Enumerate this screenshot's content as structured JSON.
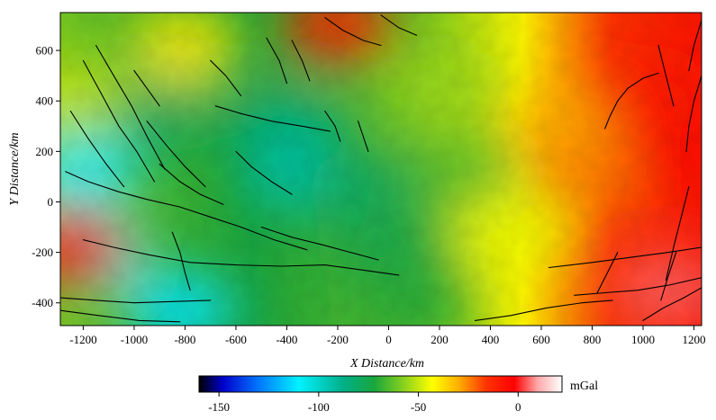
{
  "chart_data": {
    "type": "heatmap",
    "title": "",
    "xlabel": "X Distance/km",
    "ylabel": "Y Distance/km",
    "xlim": [
      -1290,
      1230
    ],
    "ylim": [
      -490,
      750
    ],
    "x_ticks": [
      -1200,
      -1000,
      -800,
      -600,
      -400,
      -200,
      0,
      200,
      400,
      600,
      800,
      1000,
      1200
    ],
    "y_ticks": [
      -400,
      -200,
      0,
      200,
      400,
      600
    ],
    "colorbar": {
      "unit": "mGal",
      "range": [
        -160,
        22
      ],
      "ticks": [
        -150,
        -100,
        -50,
        0
      ],
      "stops": [
        {
          "value": -160,
          "color": "#000000"
        },
        {
          "value": -148,
          "color": "#0000cc"
        },
        {
          "value": -130,
          "color": "#0077ff"
        },
        {
          "value": -110,
          "color": "#00f2ff"
        },
        {
          "value": -88,
          "color": "#00b08a"
        },
        {
          "value": -72,
          "color": "#1aa63c"
        },
        {
          "value": -57,
          "color": "#8cd21e"
        },
        {
          "value": -43,
          "color": "#ffff00"
        },
        {
          "value": -30,
          "color": "#ffb000"
        },
        {
          "value": -16,
          "color": "#ff3300"
        },
        {
          "value": -2,
          "color": "#ff0000"
        },
        {
          "value": 10,
          "color": "#ffaaaa"
        },
        {
          "value": 22,
          "color": "#ffffff"
        }
      ]
    },
    "anomaly_regions": [
      {
        "x": -900,
        "y": 350,
        "value": -80
      },
      {
        "x": -400,
        "y": 300,
        "value": -86
      },
      {
        "x": -350,
        "y": 100,
        "value": -95
      },
      {
        "x": -100,
        "y": 50,
        "value": -80
      },
      {
        "x": 0,
        "y": -200,
        "value": -75
      },
      {
        "x": -1150,
        "y": -200,
        "value": -108
      },
      {
        "x": -820,
        "y": -430,
        "value": -112
      },
      {
        "x": -1200,
        "y": 120,
        "value": -110
      },
      {
        "x": 200,
        "y": 450,
        "value": -55
      },
      {
        "x": 300,
        "y": 100,
        "value": -65
      },
      {
        "x": 500,
        "y": -100,
        "value": -45
      },
      {
        "x": 700,
        "y": 300,
        "value": -30
      },
      {
        "x": 800,
        "y": 100,
        "value": -25
      },
      {
        "x": 1050,
        "y": 400,
        "value": -8
      },
      {
        "x": 1150,
        "y": 150,
        "value": -6
      },
      {
        "x": 1100,
        "y": -350,
        "value": 5
      },
      {
        "x": -200,
        "y": 700,
        "value": -12
      },
      {
        "x": -800,
        "y": 620,
        "value": -40
      },
      {
        "x": -1250,
        "y": -180,
        "value": -12
      },
      {
        "x": 100,
        "y": -420,
        "value": -70
      },
      {
        "x": -1260,
        "y": 420,
        "value": -50
      }
    ],
    "faults": [
      [
        [
          -1200,
          560
        ],
        [
          -1130,
          430
        ],
        [
          -1060,
          300
        ],
        [
          -990,
          200
        ],
        [
          -920,
          80
        ]
      ],
      [
        [
          -1150,
          620
        ],
        [
          -1080,
          500
        ],
        [
          -1010,
          380
        ],
        [
          -950,
          260
        ],
        [
          -880,
          130
        ]
      ],
      [
        [
          -1250,
          360
        ],
        [
          -1180,
          250
        ],
        [
          -1110,
          150
        ],
        [
          -1040,
          60
        ]
      ],
      [
        [
          -1270,
          120
        ],
        [
          -1180,
          80
        ],
        [
          -1060,
          40
        ],
        [
          -950,
          10
        ],
        [
          -820,
          -20
        ],
        [
          -700,
          -60
        ],
        [
          -580,
          -100
        ],
        [
          -450,
          -150
        ],
        [
          -320,
          -190
        ]
      ],
      [
        [
          -1200,
          -150
        ],
        [
          -1080,
          -180
        ],
        [
          -940,
          -210
        ],
        [
          -780,
          -240
        ],
        [
          -600,
          -250
        ],
        [
          -420,
          -255
        ],
        [
          -250,
          -250
        ],
        [
          -100,
          -270
        ],
        [
          40,
          -290
        ]
      ],
      [
        [
          -1290,
          -380
        ],
        [
          -1150,
          -390
        ],
        [
          -1000,
          -400
        ],
        [
          -850,
          -395
        ],
        [
          -700,
          -390
        ]
      ],
      [
        [
          -1290,
          -430
        ],
        [
          -1140,
          -450
        ],
        [
          -980,
          -470
        ],
        [
          -820,
          -475
        ]
      ],
      [
        [
          -900,
          150
        ],
        [
          -820,
          80
        ],
        [
          -740,
          30
        ],
        [
          -650,
          -10
        ]
      ],
      [
        [
          -850,
          -120
        ],
        [
          -820,
          -200
        ],
        [
          -800,
          -280
        ],
        [
          -780,
          -350
        ]
      ],
      [
        [
          -950,
          320
        ],
        [
          -870,
          220
        ],
        [
          -800,
          140
        ],
        [
          -720,
          60
        ]
      ],
      [
        [
          -680,
          380
        ],
        [
          -580,
          350
        ],
        [
          -460,
          320
        ],
        [
          -340,
          300
        ],
        [
          -230,
          280
        ]
      ],
      [
        [
          -480,
          650
        ],
        [
          -430,
          560
        ],
        [
          -400,
          470
        ]
      ],
      [
        [
          -380,
          640
        ],
        [
          -340,
          560
        ],
        [
          -310,
          480
        ]
      ],
      [
        [
          -250,
          730
        ],
        [
          -180,
          680
        ],
        [
          -100,
          640
        ],
        [
          -30,
          620
        ]
      ],
      [
        [
          -30,
          740
        ],
        [
          40,
          690
        ],
        [
          110,
          660
        ]
      ],
      [
        [
          -250,
          360
        ],
        [
          -210,
          300
        ],
        [
          -190,
          240
        ]
      ],
      [
        [
          -120,
          320
        ],
        [
          -100,
          260
        ],
        [
          -80,
          200
        ]
      ],
      [
        [
          -600,
          200
        ],
        [
          -540,
          140
        ],
        [
          -460,
          80
        ],
        [
          -380,
          30
        ]
      ],
      [
        [
          -500,
          -100
        ],
        [
          -380,
          -140
        ],
        [
          -260,
          -170
        ],
        [
          -150,
          -200
        ],
        [
          -40,
          -230
        ]
      ],
      [
        [
          850,
          290
        ],
        [
          870,
          340
        ],
        [
          900,
          400
        ],
        [
          940,
          450
        ],
        [
          1000,
          490
        ],
        [
          1060,
          510
        ]
      ],
      [
        [
          1060,
          620
        ],
        [
          1080,
          540
        ],
        [
          1100,
          460
        ],
        [
          1120,
          380
        ]
      ],
      [
        [
          1230,
          500
        ],
        [
          1200,
          400
        ],
        [
          1180,
          300
        ],
        [
          1170,
          200
        ]
      ],
      [
        [
          1180,
          60
        ],
        [
          1150,
          -60
        ],
        [
          1120,
          -180
        ],
        [
          1090,
          -310
        ]
      ],
      [
        [
          1130,
          -200
        ],
        [
          1100,
          -290
        ],
        [
          1070,
          -390
        ]
      ],
      [
        [
          900,
          -200
        ],
        [
          860,
          -280
        ],
        [
          820,
          -360
        ]
      ],
      [
        [
          630,
          -260
        ],
        [
          800,
          -240
        ],
        [
          950,
          -220
        ],
        [
          1100,
          -200
        ],
        [
          1230,
          -180
        ]
      ],
      [
        [
          730,
          -370
        ],
        [
          850,
          -360
        ],
        [
          980,
          -350
        ],
        [
          1100,
          -330
        ],
        [
          1230,
          -300
        ]
      ],
      [
        [
          340,
          -470
        ],
        [
          480,
          -450
        ],
        [
          620,
          -420
        ],
        [
          760,
          -400
        ],
        [
          880,
          -390
        ]
      ],
      [
        [
          1000,
          -470
        ],
        [
          1080,
          -420
        ],
        [
          1160,
          -380
        ],
        [
          1230,
          -340
        ]
      ],
      [
        [
          1230,
          720
        ],
        [
          1200,
          620
        ],
        [
          1180,
          520
        ]
      ],
      [
        [
          -1000,
          520
        ],
        [
          -950,
          450
        ],
        [
          -900,
          380
        ]
      ],
      [
        [
          -700,
          560
        ],
        [
          -640,
          500
        ],
        [
          -580,
          420
        ]
      ]
    ]
  }
}
